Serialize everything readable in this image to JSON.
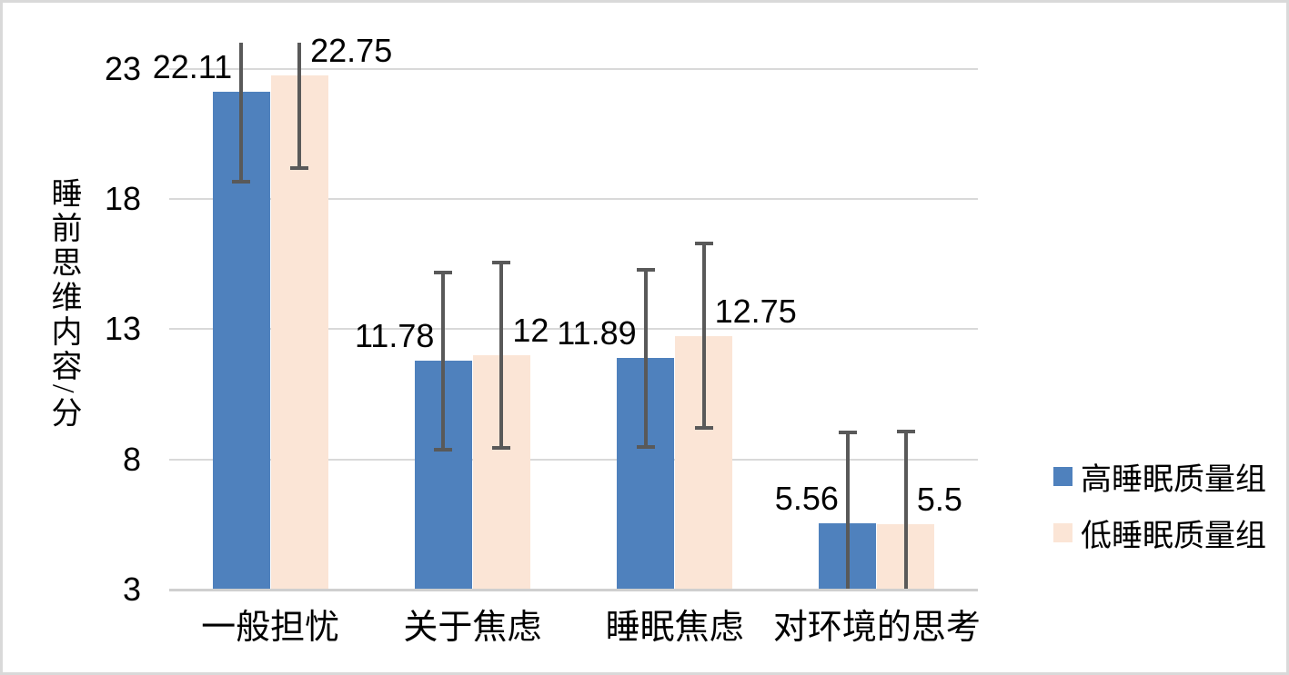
{
  "chart_data": {
    "type": "bar",
    "title": "",
    "ylabel": "睡前思维内容/分",
    "xlabel": "",
    "categories": [
      "一般担忧",
      "关于焦虑",
      "睡眠焦虑",
      "对环境的思考"
    ],
    "series": [
      {
        "name": "高睡眠质量组",
        "color": "#4F81BD",
        "values": [
          22.11,
          11.78,
          11.89,
          5.56
        ],
        "labels": [
          "22.11",
          "11.78",
          "11.89",
          "5.56"
        ],
        "errors": [
          3.44,
          3.4,
          3.4,
          3.47
        ]
      },
      {
        "name": "低睡眠质量组",
        "color": "#FBE5D6",
        "values": [
          22.75,
          12,
          12.75,
          5.5
        ],
        "labels": [
          "22.75",
          "12",
          "12.75",
          "5.5"
        ],
        "errors": [
          3.56,
          3.55,
          3.55,
          3.57
        ]
      }
    ],
    "y_axis": {
      "min": 3,
      "max": 24,
      "ticks": [
        3,
        8,
        13,
        18,
        23
      ]
    },
    "grid": true,
    "legend_position": "right",
    "colors": {
      "error_bar": "#595959",
      "gridline": "#D9D9D9",
      "axis_line": "#CFCFCF",
      "border": "#D9D9D9",
      "background": "#FFFFFF",
      "text": "#000000"
    }
  }
}
